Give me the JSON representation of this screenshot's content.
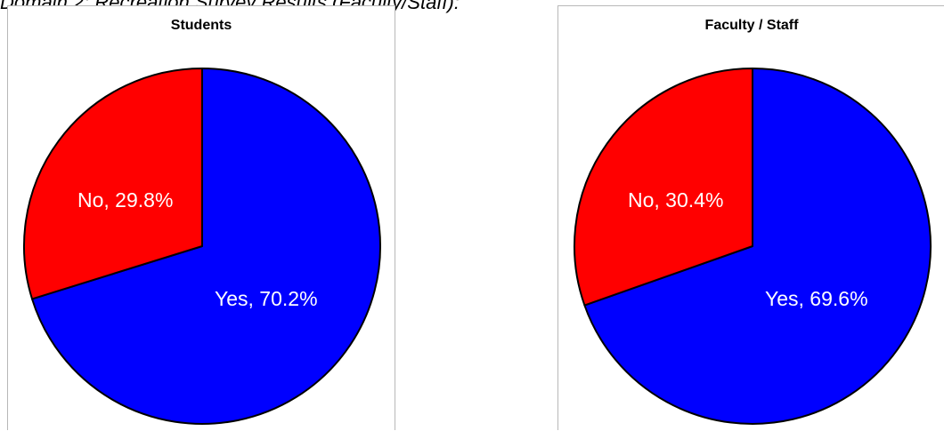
{
  "caption": "Domain 2: Recreation Survey Results (Faculty/Staff):",
  "chart_data": [
    {
      "type": "pie",
      "title": "Students",
      "slices": [
        {
          "label": "Yes, 70.2%",
          "category": "Yes",
          "value": 70.2,
          "color": "#0000ff"
        },
        {
          "label": "No, 29.8%",
          "category": "No",
          "value": 29.8,
          "color": "#ff0000"
        }
      ],
      "start": "12 o'clock",
      "direction": "clockwise"
    },
    {
      "type": "pie",
      "title": "Faculty / Staff",
      "slices": [
        {
          "label": "Yes, 69.6%",
          "category": "Yes",
          "value": 69.6,
          "color": "#0000ff"
        },
        {
          "label": "No, 30.4%",
          "category": "No",
          "value": 30.4,
          "color": "#ff0000"
        }
      ],
      "start": "12 o'clock",
      "direction": "clockwise"
    }
  ]
}
